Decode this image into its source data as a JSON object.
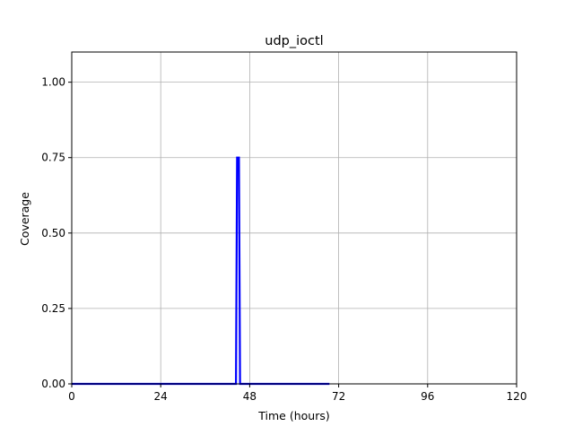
{
  "chart_data": {
    "type": "line",
    "title": "udp_ioctl",
    "xlabel": "Time (hours)",
    "ylabel": "Coverage",
    "xlim": [
      0,
      120
    ],
    "ylim": [
      0,
      1.1
    ],
    "xticks": [
      0,
      24,
      48,
      72,
      96,
      120
    ],
    "xtick_labels": [
      "0",
      "24",
      "48",
      "72",
      "96",
      "120"
    ],
    "yticks": [
      0,
      0.25,
      0.5,
      0.75,
      1.0
    ],
    "ytick_labels": [
      "0.00",
      "0.25",
      "0.50",
      "0.75",
      "1.00"
    ],
    "grid": true,
    "series": [
      {
        "color": "#0000ff",
        "x": [
          0,
          44.3,
          44.6,
          45.1,
          45.4,
          69.5
        ],
        "y": [
          0,
          0,
          0.75,
          0.75,
          0,
          0
        ]
      }
    ]
  }
}
